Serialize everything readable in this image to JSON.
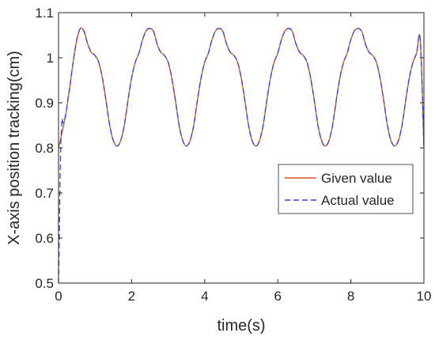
{
  "chart_data": {
    "type": "line",
    "title": "",
    "xlabel": "time(s)",
    "ylabel": "X-axis position tracking(cm)",
    "xlim": [
      0,
      10
    ],
    "ylim": [
      0.5,
      1.1
    ],
    "xticks": [
      0,
      2,
      4,
      6,
      8,
      10
    ],
    "xtick_labels": [
      "0",
      "2",
      "4",
      "6",
      "8",
      "10"
    ],
    "yticks": [
      0.5,
      0.6,
      0.7,
      0.8,
      0.9,
      1.0,
      1.1
    ],
    "ytick_labels": [
      "0.5",
      "0.6",
      "0.7",
      "0.8",
      "0.9",
      "1",
      "1.1"
    ],
    "grid": false,
    "legend_position": "center-right",
    "series": [
      {
        "name": "Given value",
        "color": "#d95319",
        "line_style": "solid",
        "x": [
          0,
          0.1,
          0.2,
          0.3,
          0.4,
          0.5,
          0.6,
          0.7,
          0.8,
          0.9,
          1.0,
          1.1,
          1.2,
          1.3,
          1.4,
          1.5,
          1.6,
          1.7,
          1.8,
          1.9,
          2.0,
          2.1,
          2.2,
          2.3,
          2.4,
          2.5,
          2.6,
          2.7,
          2.8,
          2.9,
          3.0,
          3.1,
          3.2,
          3.3,
          3.4,
          3.5,
          3.6,
          3.7,
          3.8,
          3.9,
          4.0,
          4.1,
          4.2,
          4.3,
          4.4,
          4.5,
          4.6,
          4.7,
          4.8,
          4.9,
          5.0,
          5.1,
          5.2,
          5.3,
          5.4,
          5.5,
          5.6,
          5.7,
          5.8,
          5.9,
          6.0,
          6.1,
          6.2,
          6.3,
          6.4,
          6.5,
          6.6,
          6.7,
          6.8,
          6.9,
          7.0,
          7.1,
          7.2,
          7.3,
          7.4,
          7.5,
          7.6,
          7.7,
          7.8,
          7.9,
          8.0,
          8.1,
          8.2,
          8.3,
          8.4,
          8.5,
          8.6,
          8.7,
          8.8,
          8.9,
          9.0,
          9.1,
          9.2,
          9.3,
          9.4,
          9.5,
          9.6,
          9.7,
          9.8,
          9.9,
          10.0
        ],
        "values": [
          0.8,
          0.835,
          0.875,
          0.93,
          0.99,
          1.04,
          1.065,
          1.058,
          1.03,
          1.012,
          1.005,
          0.99,
          0.955,
          0.905,
          0.85,
          0.816,
          0.804,
          0.816,
          0.85,
          0.905,
          0.955,
          0.99,
          1.01,
          1.04,
          1.06,
          1.065,
          1.058,
          1.03,
          1.012,
          1.005,
          0.99,
          0.955,
          0.905,
          0.85,
          0.816,
          0.804,
          0.816,
          0.85,
          0.905,
          0.955,
          0.99,
          1.01,
          1.04,
          1.06,
          1.065,
          1.058,
          1.03,
          1.012,
          1.005,
          0.99,
          0.955,
          0.905,
          0.85,
          0.816,
          0.804,
          0.816,
          0.85,
          0.905,
          0.955,
          0.99,
          1.01,
          1.04,
          1.06,
          1.065,
          1.058,
          1.03,
          1.012,
          1.005,
          0.99,
          0.955,
          0.905,
          0.85,
          0.816,
          0.804,
          0.816,
          0.85,
          0.905,
          0.955,
          0.99,
          1.01,
          1.04,
          1.06,
          1.065,
          1.058,
          1.03,
          1.012,
          1.005,
          0.99,
          0.955,
          0.905,
          0.85,
          0.816,
          0.804,
          0.816,
          0.85,
          0.905,
          0.955,
          0.99,
          1.01,
          1.04,
          0.8
        ]
      },
      {
        "name": "Actual value",
        "color": "#3a3ae8",
        "line_style": "dashed",
        "x": [
          0,
          0.02,
          0.04,
          0.06,
          0.08,
          0.1,
          0.12,
          0.15,
          0.2,
          0.25,
          0.3,
          0.4,
          0.5,
          0.6,
          0.7,
          0.8,
          0.9,
          1.0,
          1.1,
          1.2,
          1.3,
          1.4,
          1.5,
          1.6,
          1.7,
          1.8,
          1.9,
          2.0,
          2.1,
          2.2,
          2.3,
          2.4,
          2.5,
          2.6,
          2.7,
          2.8,
          2.9,
          3.0,
          3.1,
          3.2,
          3.3,
          3.4,
          3.5,
          3.6,
          3.7,
          3.8,
          3.9,
          4.0,
          4.1,
          4.2,
          4.3,
          4.4,
          4.5,
          4.6,
          4.7,
          4.8,
          4.9,
          5.0,
          5.1,
          5.2,
          5.3,
          5.4,
          5.5,
          5.6,
          5.7,
          5.8,
          5.9,
          6.0,
          6.1,
          6.2,
          6.3,
          6.4,
          6.5,
          6.6,
          6.7,
          6.8,
          6.9,
          7.0,
          7.1,
          7.2,
          7.3,
          7.4,
          7.5,
          7.6,
          7.7,
          7.8,
          7.9,
          8.0,
          8.1,
          8.2,
          8.3,
          8.4,
          8.5,
          8.6,
          8.7,
          8.8,
          8.9,
          9.0,
          9.1,
          9.2,
          9.3,
          9.4,
          9.5,
          9.6,
          9.7,
          9.8,
          9.9,
          10.0
        ],
        "values": [
          0.5,
          0.6,
          0.72,
          0.8,
          0.84,
          0.865,
          0.855,
          0.86,
          0.875,
          0.905,
          0.93,
          0.99,
          1.04,
          1.065,
          1.058,
          1.03,
          1.012,
          1.005,
          0.99,
          0.955,
          0.905,
          0.85,
          0.816,
          0.804,
          0.816,
          0.85,
          0.905,
          0.955,
          0.99,
          1.01,
          1.04,
          1.06,
          1.065,
          1.058,
          1.03,
          1.012,
          1.005,
          0.99,
          0.955,
          0.905,
          0.85,
          0.816,
          0.804,
          0.816,
          0.85,
          0.905,
          0.955,
          0.99,
          1.01,
          1.04,
          1.06,
          1.065,
          1.058,
          1.03,
          1.012,
          1.005,
          0.99,
          0.955,
          0.905,
          0.85,
          0.816,
          0.804,
          0.816,
          0.85,
          0.905,
          0.955,
          0.99,
          1.01,
          1.04,
          1.06,
          1.065,
          1.058,
          1.03,
          1.012,
          1.005,
          0.99,
          0.955,
          0.905,
          0.85,
          0.816,
          0.804,
          0.816,
          0.85,
          0.905,
          0.955,
          0.99,
          1.01,
          1.04,
          1.06,
          1.065,
          1.058,
          1.03,
          1.012,
          1.005,
          0.99,
          0.955,
          0.905,
          0.85,
          0.816,
          0.804,
          0.816,
          0.85,
          0.905,
          0.955,
          0.99,
          1.01,
          1.04,
          0.8
        ]
      }
    ]
  }
}
